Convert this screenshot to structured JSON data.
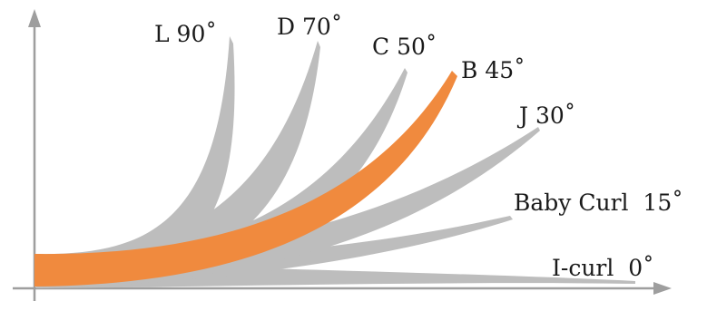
{
  "diagram": {
    "curls": [
      {
        "name": "L",
        "angle": "90",
        "label": "L 90˚",
        "color": "#bdbdbd"
      },
      {
        "name": "D",
        "angle": "70",
        "label": "D 70˚",
        "color": "#bdbdbd"
      },
      {
        "name": "C",
        "angle": "50",
        "label": "C 50˚",
        "color": "#bdbdbd"
      },
      {
        "name": "J",
        "angle": "30",
        "label": "J 30˚",
        "color": "#bdbdbd"
      },
      {
        "name": "Baby Curl",
        "angle": "15",
        "label": "Baby Curl  15˚",
        "color": "#bdbdbd"
      },
      {
        "name": "I-curl",
        "angle": "0",
        "label": "I-curl  0˚",
        "color": "#bdbdbd"
      },
      {
        "name": "B",
        "angle": "45",
        "label": "B 45˚",
        "color": "#f08a3e",
        "highlighted": true
      }
    ],
    "axis_color": "#9e9e9e"
  }
}
